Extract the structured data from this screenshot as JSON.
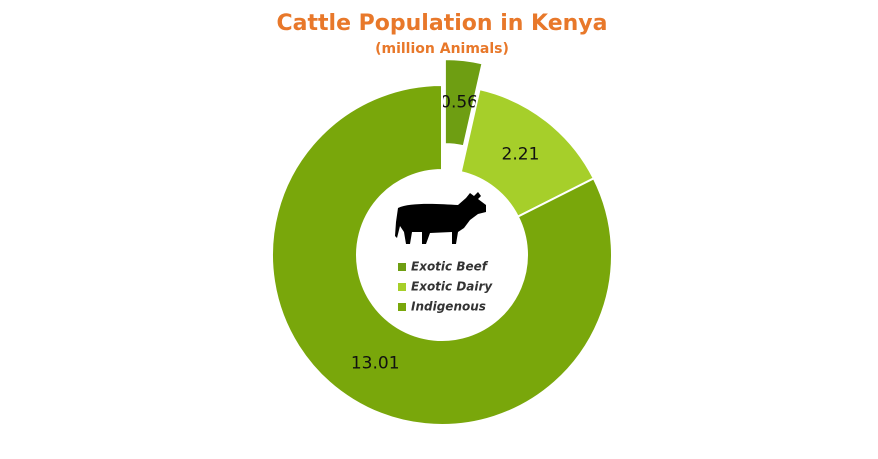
{
  "chart_data": {
    "type": "donut",
    "title": "Cattle Population in Kenya",
    "subtitle": "(million Animals)",
    "categories": [
      "Exotic Beef",
      "Exotic Dairy",
      "Indigenous"
    ],
    "values": [
      0.56,
      2.21,
      13.01
    ],
    "colors": [
      "#6e9e12",
      "#a6cf2a",
      "#79a70b"
    ],
    "legend": "center"
  }
}
